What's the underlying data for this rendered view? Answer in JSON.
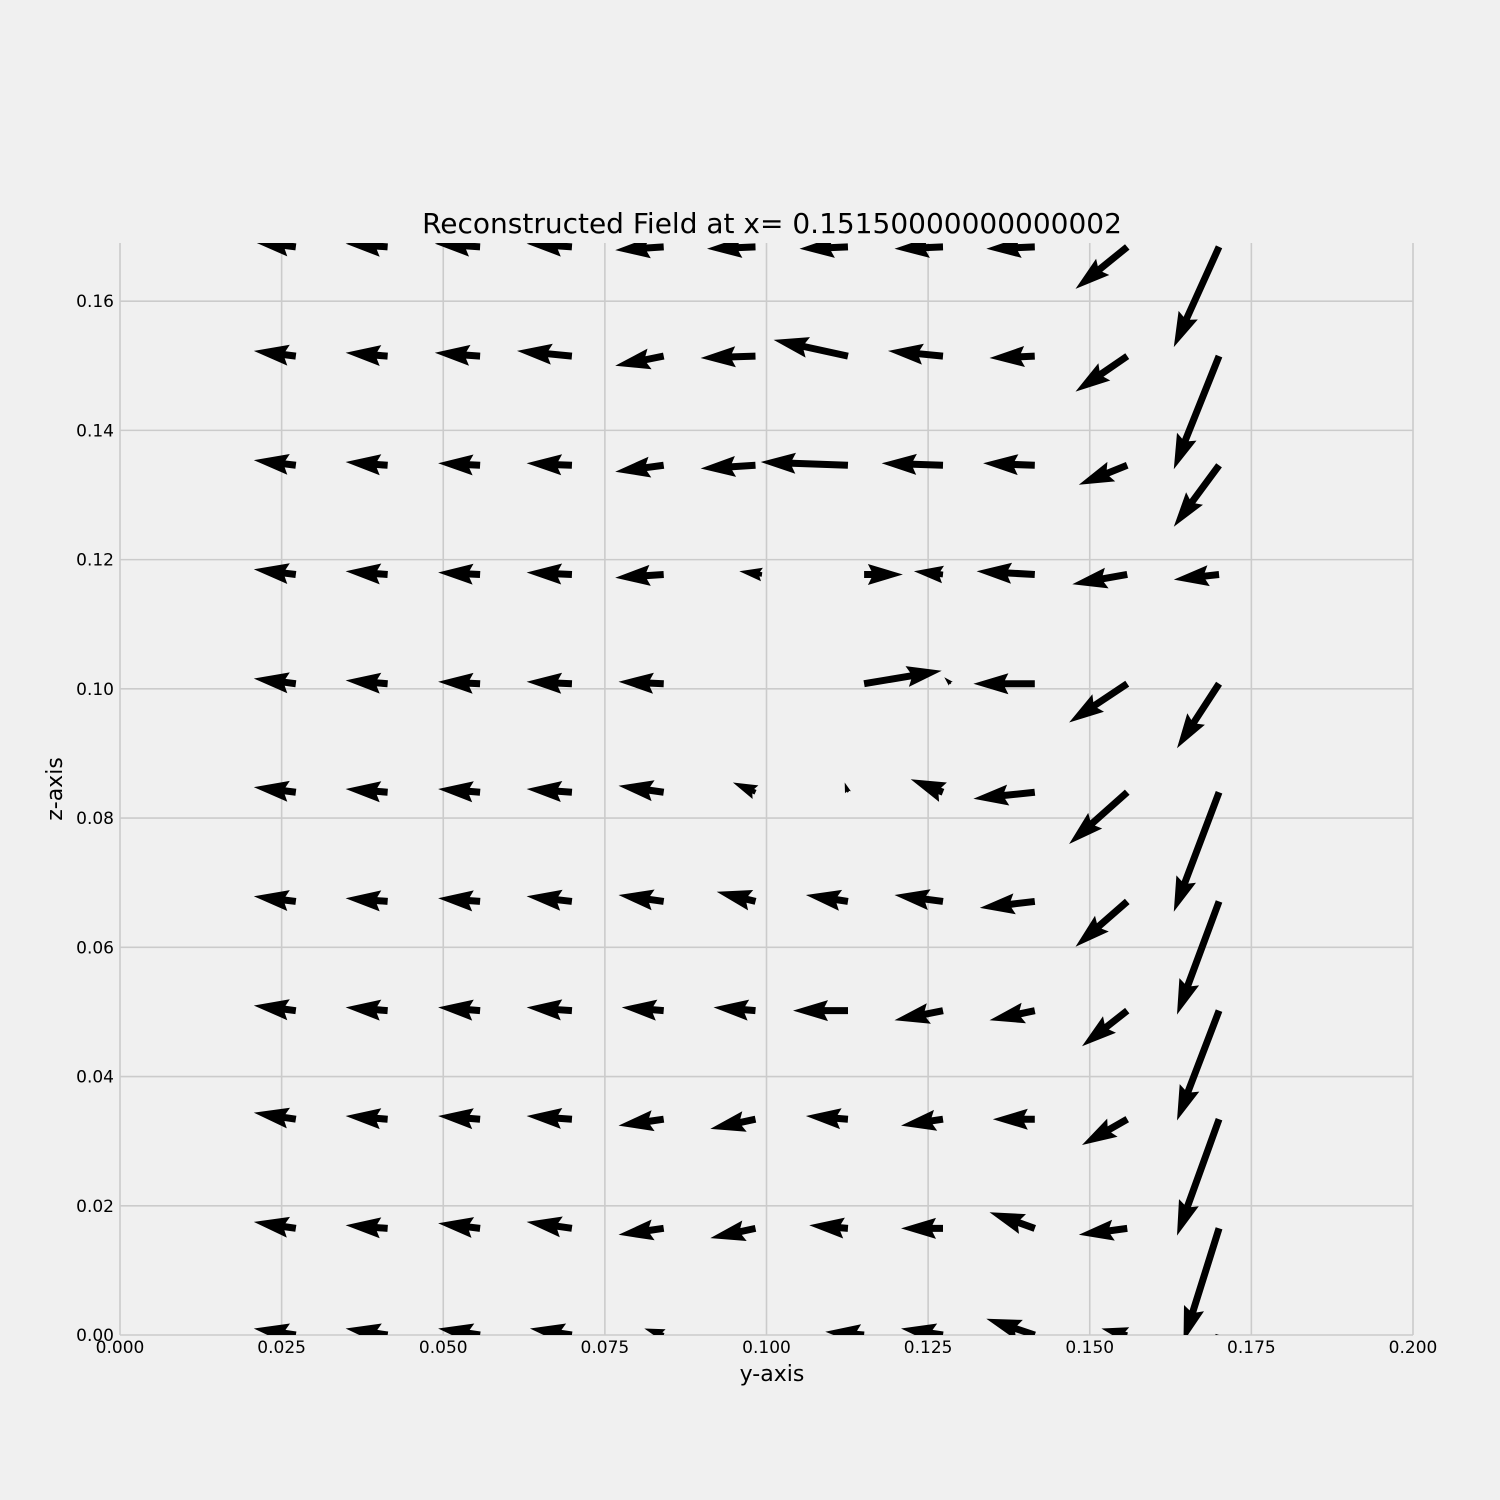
{
  "chart_data": {
    "type": "quiver",
    "title": "Reconstructed Field at x= 0.15150000000000002",
    "xlabel": "y-axis",
    "ylabel": "z-axis",
    "xlim": [
      0.0,
      0.2
    ],
    "ylim": [
      0.0,
      0.169
    ],
    "xticks": [
      "0.000",
      "0.025",
      "0.050",
      "0.075",
      "0.100",
      "0.125",
      "0.150",
      "0.175",
      "0.200"
    ],
    "yticks": [
      "0.00",
      "0.02",
      "0.04",
      "0.06",
      "0.08",
      "0.10",
      "0.12",
      "0.14",
      "0.16"
    ],
    "grid": true,
    "background": "#f0f0f0",
    "grid_color": "#cbcbcb",
    "arrow_color": "#000000",
    "arrows": [
      {
        "y": 0.0272,
        "z": 0.0,
        "u": -0.0065,
        "v": 0.001
      },
      {
        "y": 0.0414,
        "z": 0.0,
        "u": -0.0065,
        "v": 0.001
      },
      {
        "y": 0.0557,
        "z": 0.0,
        "u": -0.0065,
        "v": 0.001
      },
      {
        "y": 0.0699,
        "z": 0.0,
        "u": -0.0065,
        "v": 0.001
      },
      {
        "y": 0.0841,
        "z": 0.0,
        "u": -0.003,
        "v": 0.001
      },
      {
        "y": 0.1151,
        "z": 0.0,
        "u": -0.006,
        "v": 0.0005
      },
      {
        "y": 0.1273,
        "z": 0.0,
        "u": -0.0065,
        "v": 0.001
      },
      {
        "y": 0.1415,
        "z": 0.0,
        "u": -0.0075,
        "v": 0.0025
      },
      {
        "y": 0.1558,
        "z": 0.0,
        "u": -0.004,
        "v": 0.001
      },
      {
        "y": 0.17,
        "z": 0.0,
        "u": -0.0055,
        "v": -0.017
      },
      {
        "y": 0.0272,
        "z": 0.0165,
        "u": -0.0065,
        "v": 0.001
      },
      {
        "y": 0.0414,
        "z": 0.0165,
        "u": -0.0065,
        "v": 0.0005
      },
      {
        "y": 0.0557,
        "z": 0.0165,
        "u": -0.0065,
        "v": 0.0008
      },
      {
        "y": 0.0699,
        "z": 0.0165,
        "u": -0.007,
        "v": 0.001
      },
      {
        "y": 0.0841,
        "z": 0.0165,
        "u": -0.007,
        "v": -0.001
      },
      {
        "y": 0.0983,
        "z": 0.0165,
        "u": -0.007,
        "v": -0.0015
      },
      {
        "y": 0.1126,
        "z": 0.0165,
        "u": -0.006,
        "v": 0.0005
      },
      {
        "y": 0.1273,
        "z": 0.0165,
        "u": -0.0065,
        "v": 0.0
      },
      {
        "y": 0.1415,
        "z": 0.0165,
        "u": -0.007,
        "v": 0.0025
      },
      {
        "y": 0.1558,
        "z": 0.0165,
        "u": -0.0075,
        "v": -0.001
      },
      {
        "y": 0.17,
        "z": 0.0165,
        "u": -0.0055,
        "v": -0.0175
      },
      {
        "y": 0.0272,
        "z": 0.0334,
        "u": -0.0065,
        "v": 0.001
      },
      {
        "y": 0.0414,
        "z": 0.0334,
        "u": -0.0065,
        "v": 0.0005
      },
      {
        "y": 0.0557,
        "z": 0.0334,
        "u": -0.0065,
        "v": 0.0005
      },
      {
        "y": 0.0699,
        "z": 0.0334,
        "u": -0.007,
        "v": 0.0005
      },
      {
        "y": 0.0841,
        "z": 0.0334,
        "u": -0.007,
        "v": -0.001
      },
      {
        "y": 0.0983,
        "z": 0.0334,
        "u": -0.007,
        "v": -0.0015
      },
      {
        "y": 0.1126,
        "z": 0.0334,
        "u": -0.0065,
        "v": 0.0005
      },
      {
        "y": 0.1273,
        "z": 0.0334,
        "u": -0.0065,
        "v": -0.001
      },
      {
        "y": 0.1415,
        "z": 0.0334,
        "u": -0.0065,
        "v": 0.0
      },
      {
        "y": 0.1558,
        "z": 0.0334,
        "u": -0.007,
        "v": -0.004
      },
      {
        "y": 0.17,
        "z": 0.0334,
        "u": -0.0065,
        "v": -0.018
      },
      {
        "y": 0.0272,
        "z": 0.0502,
        "u": -0.0065,
        "v": 0.0008
      },
      {
        "y": 0.0414,
        "z": 0.0502,
        "u": -0.0065,
        "v": 0.0005
      },
      {
        "y": 0.0557,
        "z": 0.0502,
        "u": -0.0065,
        "v": 0.0005
      },
      {
        "y": 0.0699,
        "z": 0.0502,
        "u": -0.007,
        "v": 0.0005
      },
      {
        "y": 0.0841,
        "z": 0.0502,
        "u": -0.0065,
        "v": 0.0005
      },
      {
        "y": 0.0983,
        "z": 0.0502,
        "u": -0.0065,
        "v": 0.0005
      },
      {
        "y": 0.1126,
        "z": 0.0502,
        "u": -0.0085,
        "v": 0.0
      },
      {
        "y": 0.1273,
        "z": 0.0502,
        "u": -0.0075,
        "v": -0.0015
      },
      {
        "y": 0.1415,
        "z": 0.0502,
        "u": -0.007,
        "v": -0.0015
      },
      {
        "y": 0.1558,
        "z": 0.0502,
        "u": -0.007,
        "v": -0.0055
      },
      {
        "y": 0.17,
        "z": 0.0502,
        "u": -0.0065,
        "v": -0.017
      },
      {
        "y": 0.0272,
        "z": 0.0671,
        "u": -0.0065,
        "v": 0.0008
      },
      {
        "y": 0.0414,
        "z": 0.0671,
        "u": -0.0065,
        "v": 0.0005
      },
      {
        "y": 0.0557,
        "z": 0.0671,
        "u": -0.0065,
        "v": 0.0005
      },
      {
        "y": 0.0699,
        "z": 0.0671,
        "u": -0.007,
        "v": 0.0008
      },
      {
        "y": 0.0841,
        "z": 0.0671,
        "u": -0.007,
        "v": 0.001
      },
      {
        "y": 0.0983,
        "z": 0.0671,
        "u": -0.006,
        "v": 0.0015
      },
      {
        "y": 0.1126,
        "z": 0.0671,
        "u": -0.0065,
        "v": 0.001
      },
      {
        "y": 0.1273,
        "z": 0.0671,
        "u": -0.0075,
        "v": 0.001
      },
      {
        "y": 0.1415,
        "z": 0.0671,
        "u": -0.0085,
        "v": -0.001
      },
      {
        "y": 0.1558,
        "z": 0.0671,
        "u": -0.008,
        "v": -0.007
      },
      {
        "y": 0.17,
        "z": 0.0671,
        "u": -0.0065,
        "v": -0.0175
      },
      {
        "y": 0.0272,
        "z": 0.084,
        "u": -0.0065,
        "v": 0.0008
      },
      {
        "y": 0.0414,
        "z": 0.084,
        "u": -0.0065,
        "v": 0.0005
      },
      {
        "y": 0.0557,
        "z": 0.084,
        "u": -0.0065,
        "v": 0.0005
      },
      {
        "y": 0.0699,
        "z": 0.084,
        "u": -0.007,
        "v": 0.0005
      },
      {
        "y": 0.0841,
        "z": 0.084,
        "u": -0.007,
        "v": 0.001
      },
      {
        "y": 0.0983,
        "z": 0.084,
        "u": -0.0035,
        "v": 0.0015
      },
      {
        "y": 0.1126,
        "z": 0.084,
        "u": -0.0005,
        "v": 0.0015
      },
      {
        "y": 0.1273,
        "z": 0.084,
        "u": -0.005,
        "v": 0.002
      },
      {
        "y": 0.1415,
        "z": 0.084,
        "u": -0.0095,
        "v": -0.001
      },
      {
        "y": 0.1558,
        "z": 0.084,
        "u": -0.009,
        "v": -0.008
      },
      {
        "y": 0.17,
        "z": 0.084,
        "u": -0.007,
        "v": -0.0185
      },
      {
        "y": 0.0272,
        "z": 0.1008,
        "u": -0.0065,
        "v": 0.0008
      },
      {
        "y": 0.0414,
        "z": 0.1008,
        "u": -0.0065,
        "v": 0.0005
      },
      {
        "y": 0.0557,
        "z": 0.1008,
        "u": -0.0065,
        "v": 0.0003
      },
      {
        "y": 0.0699,
        "z": 0.1008,
        "u": -0.007,
        "v": 0.0003
      },
      {
        "y": 0.0841,
        "z": 0.1008,
        "u": -0.007,
        "v": 0.0003
      },
      {
        "y": 0.1151,
        "z": 0.1008,
        "u": 0.012,
        "v": 0.002
      },
      {
        "y": 0.1285,
        "z": 0.1008,
        "u": -0.001,
        "v": 0.001
      },
      {
        "y": 0.1415,
        "z": 0.1008,
        "u": -0.0095,
        "v": 0.0
      },
      {
        "y": 0.1558,
        "z": 0.1008,
        "u": -0.009,
        "v": -0.006
      },
      {
        "y": 0.17,
        "z": 0.1008,
        "u": -0.0065,
        "v": -0.01
      },
      {
        "y": 0.0272,
        "z": 0.1177,
        "u": -0.0065,
        "v": 0.0008
      },
      {
        "y": 0.0414,
        "z": 0.1177,
        "u": -0.0065,
        "v": 0.0005
      },
      {
        "y": 0.0557,
        "z": 0.1177,
        "u": -0.0065,
        "v": 0.0003
      },
      {
        "y": 0.0699,
        "z": 0.1177,
        "u": -0.007,
        "v": 0.0003
      },
      {
        "y": 0.0841,
        "z": 0.1177,
        "u": -0.0075,
        "v": -0.0005
      },
      {
        "y": 0.0993,
        "z": 0.1177,
        "u": -0.0035,
        "v": 0.0005
      },
      {
        "y": 0.1151,
        "z": 0.1177,
        "u": 0.006,
        "v": 0.0
      },
      {
        "y": 0.1273,
        "z": 0.1177,
        "u": -0.0045,
        "v": 0.0005
      },
      {
        "y": 0.1415,
        "z": 0.1177,
        "u": -0.009,
        "v": 0.0005
      },
      {
        "y": 0.1558,
        "z": 0.1177,
        "u": -0.0085,
        "v": -0.0015
      },
      {
        "y": 0.17,
        "z": 0.1177,
        "u": -0.007,
        "v": -0.0008
      },
      {
        "y": 0.0272,
        "z": 0.1346,
        "u": -0.0065,
        "v": 0.0008
      },
      {
        "y": 0.0414,
        "z": 0.1346,
        "u": -0.0065,
        "v": 0.0005
      },
      {
        "y": 0.0557,
        "z": 0.1346,
        "u": -0.0065,
        "v": 0.0003
      },
      {
        "y": 0.0699,
        "z": 0.1346,
        "u": -0.007,
        "v": 0.0003
      },
      {
        "y": 0.0841,
        "z": 0.1346,
        "u": -0.0075,
        "v": -0.001
      },
      {
        "y": 0.0983,
        "z": 0.1346,
        "u": -0.0085,
        "v": -0.0005
      },
      {
        "y": 0.1126,
        "z": 0.1346,
        "u": -0.0135,
        "v": 0.0005
      },
      {
        "y": 0.1273,
        "z": 0.1346,
        "u": -0.0095,
        "v": 0.0003
      },
      {
        "y": 0.1415,
        "z": 0.1346,
        "u": -0.008,
        "v": 0.0003
      },
      {
        "y": 0.1558,
        "z": 0.1346,
        "u": -0.0075,
        "v": -0.003
      },
      {
        "y": 0.17,
        "z": 0.1346,
        "u": -0.007,
        "v": -0.0095
      },
      {
        "y": 0.0272,
        "z": 0.1515,
        "u": -0.0065,
        "v": 0.0008
      },
      {
        "y": 0.0414,
        "z": 0.1515,
        "u": -0.0065,
        "v": 0.0005
      },
      {
        "y": 0.0557,
        "z": 0.1515,
        "u": -0.007,
        "v": 0.0005
      },
      {
        "y": 0.0699,
        "z": 0.1515,
        "u": -0.0085,
        "v": 0.0008
      },
      {
        "y": 0.0841,
        "z": 0.1515,
        "u": -0.0075,
        "v": -0.0015
      },
      {
        "y": 0.0983,
        "z": 0.1515,
        "u": -0.0085,
        "v": -0.0003
      },
      {
        "y": 0.1126,
        "z": 0.1515,
        "u": -0.0115,
        "v": 0.0025
      },
      {
        "y": 0.1273,
        "z": 0.1515,
        "u": -0.0085,
        "v": 0.0008
      },
      {
        "y": 0.1415,
        "z": 0.1515,
        "u": -0.007,
        "v": -0.0003
      },
      {
        "y": 0.1558,
        "z": 0.1515,
        "u": -0.008,
        "v": -0.0055
      },
      {
        "y": 0.17,
        "z": 0.1515,
        "u": -0.007,
        "v": -0.0175
      },
      {
        "y": 0.0272,
        "z": 0.1684,
        "u": -0.0065,
        "v": 0.0008
      },
      {
        "y": 0.0414,
        "z": 0.1684,
        "u": -0.0065,
        "v": 0.0005
      },
      {
        "y": 0.0557,
        "z": 0.1684,
        "u": -0.007,
        "v": 0.0005
      },
      {
        "y": 0.0699,
        "z": 0.1684,
        "u": -0.007,
        "v": 0.0005
      },
      {
        "y": 0.0841,
        "z": 0.1684,
        "u": -0.0075,
        "v": -0.0005
      },
      {
        "y": 0.0983,
        "z": 0.1684,
        "u": -0.0075,
        "v": -0.0003
      },
      {
        "y": 0.1126,
        "z": 0.1684,
        "u": -0.0075,
        "v": -0.0003
      },
      {
        "y": 0.1273,
        "z": 0.1684,
        "u": -0.0075,
        "v": -0.0003
      },
      {
        "y": 0.1415,
        "z": 0.1684,
        "u": -0.0075,
        "v": -0.0003
      },
      {
        "y": 0.1558,
        "z": 0.1684,
        "u": -0.008,
        "v": -0.0065
      },
      {
        "y": 0.17,
        "z": 0.1684,
        "u": -0.007,
        "v": -0.0155
      }
    ]
  }
}
